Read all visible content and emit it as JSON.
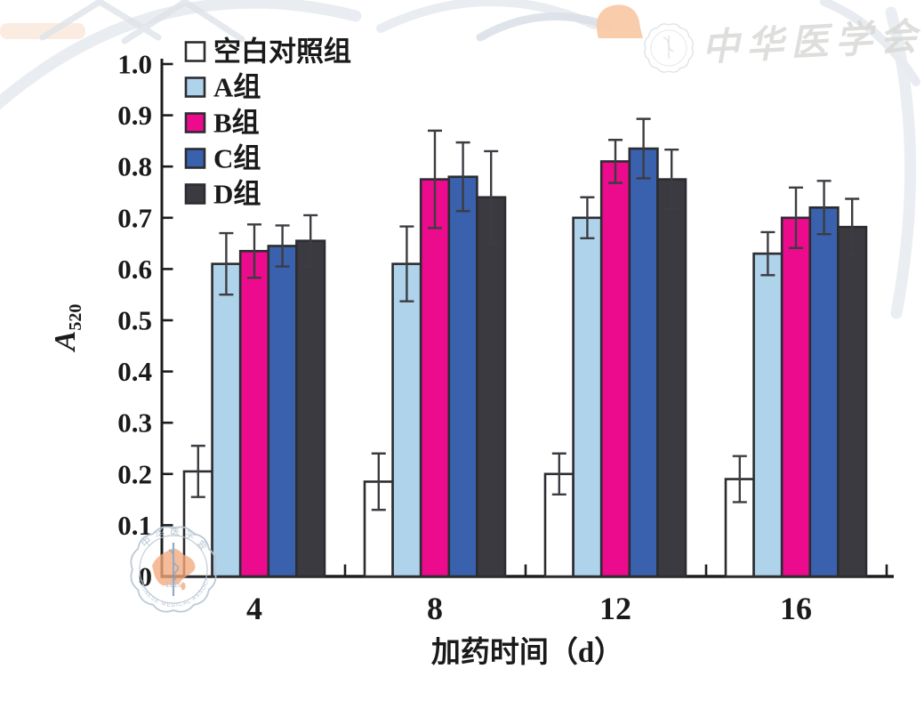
{
  "figure": {
    "background": "#ffffff"
  },
  "chart_data": {
    "type": "bar",
    "title": "",
    "categories": [
      "4",
      "8",
      "12",
      "16"
    ],
    "xlabel": "加药时间（d）",
    "ylabel": "A520",
    "ylabel_base": "A",
    "ylabel_sub": "520",
    "ylim": [
      0,
      1.0
    ],
    "ytick_step": 0.1,
    "ytick_labels": [
      "0",
      "0.1",
      "0.2",
      "0.3",
      "0.4",
      "0.5",
      "0.6",
      "0.7",
      "0.8",
      "0.9",
      "1.0"
    ],
    "grid": false,
    "error_bars": true,
    "legend_position": "top-left-inside",
    "series": [
      {
        "name": "空白对照组",
        "color": "#ffffff",
        "values": [
          0.205,
          0.185,
          0.2,
          0.19
        ],
        "errors": [
          0.05,
          0.055,
          0.04,
          0.045
        ]
      },
      {
        "name": "A组",
        "color": "#aed3ea",
        "values": [
          0.61,
          0.61,
          0.7,
          0.63
        ],
        "errors": [
          0.06,
          0.073,
          0.04,
          0.042
        ]
      },
      {
        "name": "B组",
        "color": "#ec0a8d",
        "values": [
          0.635,
          0.775,
          0.81,
          0.7
        ],
        "errors": [
          0.052,
          0.095,
          0.042,
          0.059
        ]
      },
      {
        "name": "C组",
        "color": "#3a61ad",
        "values": [
          0.645,
          0.78,
          0.835,
          0.72
        ],
        "errors": [
          0.04,
          0.067,
          0.058,
          0.052
        ]
      },
      {
        "name": "D组",
        "color": "#3b3a40",
        "values": [
          0.655,
          0.74,
          0.775,
          0.682
        ],
        "errors": [
          0.05,
          0.09,
          0.058,
          0.055
        ]
      }
    ]
  },
  "style": {
    "axis_color": "#1d1d1f",
    "bar_outline": "#2c2c31",
    "error_bar_color": "#3c3c42",
    "text_color": "#1a1a1a",
    "watermark_stroke": "#b9c5d3",
    "watermark_map_fill": "#f3a97e"
  },
  "watermarks": {
    "signature_top_right": "中华医学会",
    "seal": {
      "org_cn": "中华医学会",
      "org_en": "CHINESE MEDICAL ASSOCIATION",
      "year": "1915"
    }
  }
}
